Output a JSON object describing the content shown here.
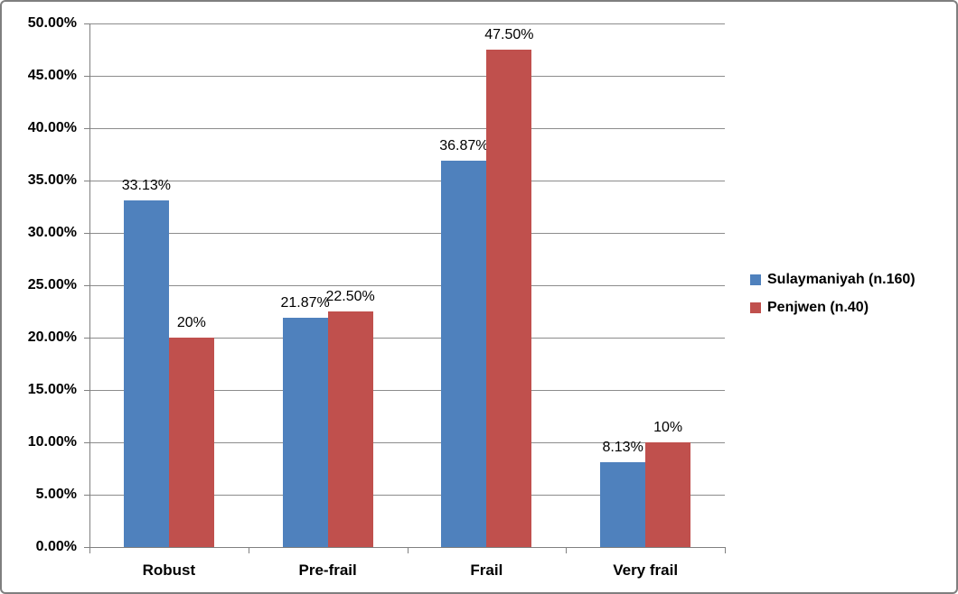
{
  "chart_data": {
    "type": "bar",
    "title": "",
    "xlabel": "",
    "ylabel": "",
    "categories": [
      "Robust",
      "Pre-frail",
      "Frail",
      "Very frail"
    ],
    "series": [
      {
        "name": "Sulaymaniyah (n.160)",
        "color": "#4F81BD",
        "values": [
          33.13,
          21.87,
          36.87,
          8.13
        ],
        "data_labels": [
          "33.13%",
          "21.87%",
          "36.87%",
          "8.13%"
        ]
      },
      {
        "name": "Penjwen (n.40)",
        "color": "#C0504D",
        "values": [
          20,
          22.5,
          47.5,
          10
        ],
        "data_labels": [
          "20%",
          "22.50%",
          "47.50%",
          "10%"
        ]
      }
    ],
    "y_axis": {
      "min": 0,
      "max": 50,
      "step": 5,
      "tick_labels": [
        "0.00%",
        "5.00%",
        "10.00%",
        "15.00%",
        "20.00%",
        "25.00%",
        "30.00%",
        "35.00%",
        "40.00%",
        "45.00%",
        "50.00%"
      ]
    },
    "legend": {
      "position": "right",
      "entries": [
        "Sulaymaniyah (n.160)",
        "Penjwen (n.40)"
      ]
    },
    "grid": true,
    "ylim": [
      0,
      50
    ],
    "colors": {
      "gridline": "#8C8C8C",
      "axis": "#808080",
      "border": "#7F7F7F",
      "background": "#FFFFFF",
      "text": "#000000"
    }
  }
}
